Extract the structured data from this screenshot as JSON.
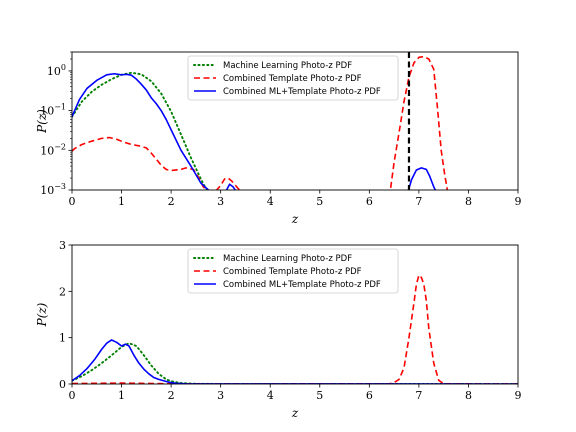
{
  "chart_data": [
    {
      "type": "line",
      "panel": "top",
      "yscale": "log",
      "xlim": [
        0,
        9
      ],
      "ylim": [
        0.001,
        3
      ],
      "xlabel": "z",
      "ylabel": "P(z)",
      "xticks": [
        "0",
        "1",
        "2",
        "3",
        "4",
        "5",
        "6",
        "7",
        "8",
        "9"
      ],
      "yticks": [
        {
          "value": 0.001,
          "base": "10",
          "exp": "−3"
        },
        {
          "value": 0.01,
          "base": "10",
          "exp": "−2"
        },
        {
          "value": 0.1,
          "base": "10",
          "exp": "−1"
        },
        {
          "value": 1,
          "base": "10",
          "exp": "0"
        }
      ],
      "legend_position": "top-center",
      "reference_line": {
        "x": 6.8,
        "style": "dashed",
        "color": "#000000"
      },
      "series": [
        {
          "name": "Machine Learning Photo-z PDF",
          "style": "dotted",
          "color": "#008000",
          "x": [
            0,
            0.2,
            0.4,
            0.6,
            0.8,
            1.0,
            1.2,
            1.4,
            1.6,
            1.8,
            2.0,
            2.2,
            2.4,
            2.6,
            2.7,
            2.8
          ],
          "y": [
            0.07,
            0.17,
            0.3,
            0.45,
            0.62,
            0.8,
            0.9,
            0.82,
            0.55,
            0.27,
            0.095,
            0.025,
            0.0065,
            0.0019,
            0.0011,
            0.00095
          ]
        },
        {
          "name": "Combined Template Photo-z PDF",
          "style": "dashed",
          "color": "#ff0000",
          "x": [
            0,
            0.05,
            0.2,
            0.4,
            0.6,
            0.75,
            0.9,
            1.05,
            1.2,
            1.35,
            1.5,
            1.6,
            1.7,
            1.8,
            1.9,
            2.0,
            2.1,
            2.2,
            2.3,
            2.45,
            2.55,
            2.65,
            2.75,
            2.85,
            2.92,
            3.0,
            3.08,
            3.15,
            3.22,
            3.3,
            3.38,
            3.45,
            6.42,
            6.5,
            6.6,
            6.7,
            6.8,
            6.9,
            7.0,
            7.1,
            7.2,
            7.3,
            7.38,
            7.45,
            7.52,
            7.58
          ],
          "y": [
            0.0095,
            0.011,
            0.014,
            0.017,
            0.02,
            0.021,
            0.019,
            0.016,
            0.014,
            0.013,
            0.0115,
            0.0085,
            0.006,
            0.0042,
            0.0033,
            0.0031,
            0.0032,
            0.0033,
            0.0036,
            0.0033,
            0.0021,
            0.0012,
            0.0009,
            0.0009,
            0.001,
            0.0013,
            0.0019,
            0.002,
            0.0017,
            0.0013,
            0.001,
            0.0009,
            0.0009,
            0.005,
            0.028,
            0.17,
            0.7,
            1.6,
            2.2,
            2.3,
            2.0,
            1.1,
            0.1,
            0.01,
            0.0025,
            0.0009
          ]
        },
        {
          "name": "Combined ML+Template Photo-z PDF",
          "style": "solid",
          "color": "#0000ff",
          "x": [
            0,
            0.15,
            0.3,
            0.5,
            0.7,
            0.85,
            1.0,
            1.1,
            1.2,
            1.3,
            1.4,
            1.5,
            1.6,
            1.7,
            1.8,
            1.9,
            2.0,
            2.2,
            2.4,
            2.6,
            2.75,
            2.85,
            3.1,
            3.18,
            3.25,
            3.32,
            6.78,
            6.85,
            6.95,
            7.05,
            7.15,
            7.22,
            7.3,
            7.35
          ],
          "y": [
            0.07,
            0.19,
            0.36,
            0.58,
            0.8,
            0.85,
            0.8,
            0.82,
            0.78,
            0.62,
            0.46,
            0.33,
            0.21,
            0.15,
            0.1,
            0.06,
            0.033,
            0.01,
            0.004,
            0.0015,
            0.001,
            0.0009,
            0.0009,
            0.0014,
            0.0012,
            0.0009,
            0.0009,
            0.0018,
            0.0032,
            0.0036,
            0.0033,
            0.0022,
            0.0012,
            0.0009
          ]
        }
      ]
    },
    {
      "type": "line",
      "panel": "bottom",
      "yscale": "linear",
      "xlim": [
        0,
        9
      ],
      "ylim": [
        0,
        3
      ],
      "xlabel": "z",
      "ylabel": "P(z)",
      "xticks": [
        "0",
        "1",
        "2",
        "3",
        "4",
        "5",
        "6",
        "7",
        "8",
        "9"
      ],
      "yticks": [
        {
          "value": 0,
          "label": "0"
        },
        {
          "value": 1,
          "label": "1"
        },
        {
          "value": 2,
          "label": "2"
        },
        {
          "value": 3,
          "label": "3"
        }
      ],
      "legend_position": "top-center",
      "series": [
        {
          "name": "Machine Learning Photo-z PDF",
          "style": "dotted",
          "color": "#008000",
          "x": [
            0,
            0.2,
            0.4,
            0.6,
            0.8,
            1.0,
            1.15,
            1.3,
            1.45,
            1.6,
            1.75,
            1.9,
            2.0,
            2.2,
            2.5,
            3.0,
            9.0
          ],
          "y": [
            0.07,
            0.17,
            0.3,
            0.45,
            0.62,
            0.8,
            0.88,
            0.82,
            0.62,
            0.4,
            0.22,
            0.1,
            0.06,
            0.02,
            0.005,
            0.001,
            0.0
          ]
        },
        {
          "name": "Combined Template Photo-z PDF",
          "style": "dashed",
          "color": "#ff0000",
          "x": [
            0,
            1.0,
            2.0,
            3.0,
            6.4,
            6.5,
            6.6,
            6.7,
            6.8,
            6.9,
            6.95,
            7.0,
            7.05,
            7.1,
            7.15,
            7.2,
            7.3,
            7.4,
            7.5,
            9.0
          ],
          "y": [
            0.01,
            0.02,
            0.005,
            0.002,
            0.005,
            0.03,
            0.1,
            0.35,
            1.0,
            1.75,
            2.15,
            2.35,
            2.3,
            2.15,
            1.8,
            1.2,
            0.45,
            0.08,
            0.005,
            0.0
          ]
        },
        {
          "name": "Combined ML+Template Photo-z PDF",
          "style": "solid",
          "color": "#0000ff",
          "x": [
            0,
            0.15,
            0.3,
            0.45,
            0.6,
            0.7,
            0.8,
            0.9,
            1.0,
            1.08,
            1.15,
            1.25,
            1.35,
            1.45,
            1.55,
            1.65,
            1.75,
            1.85,
            1.95,
            2.1,
            2.3,
            2.6,
            3.0,
            9.0
          ],
          "y": [
            0.07,
            0.18,
            0.33,
            0.52,
            0.75,
            0.88,
            0.95,
            0.9,
            0.82,
            0.86,
            0.82,
            0.62,
            0.45,
            0.32,
            0.22,
            0.14,
            0.1,
            0.07,
            0.04,
            0.015,
            0.005,
            0.002,
            0.001,
            0.0
          ]
        }
      ]
    }
  ]
}
